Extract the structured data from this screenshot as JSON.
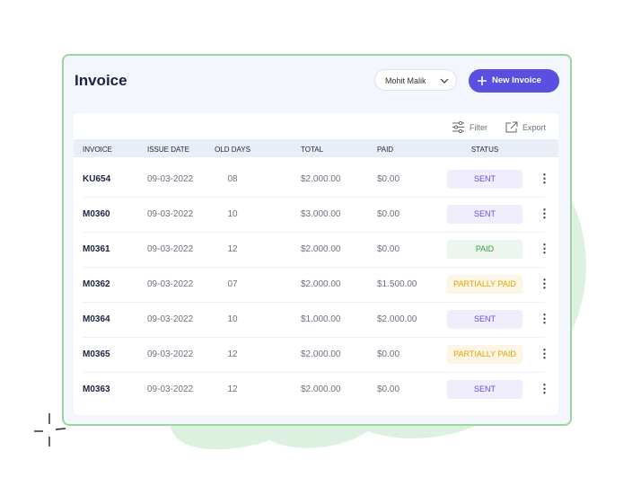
{
  "header": {
    "title": "Invoice",
    "user": "Mohit Malik",
    "new_button": "New Invoice"
  },
  "toolbar": {
    "filter": "Filter",
    "export": "Export"
  },
  "table": {
    "columns": [
      "INVOICE",
      "ISSUE DATE",
      "OLD DAYS",
      "TOTAL",
      "PAID",
      "STATUS"
    ],
    "rows": [
      {
        "invoice": "KU654",
        "issue_date": "09-03-2022",
        "old_days": "08",
        "total": "$2.000.00",
        "paid": "$0.00",
        "status": "SENT",
        "status_color": "#5b4fe0"
      },
      {
        "invoice": "M0360",
        "issue_date": "09-03-2022",
        "old_days": "10",
        "total": "$3.000.00",
        "paid": "$0.00",
        "status": "SENT",
        "status_color": "#5b4fe0"
      },
      {
        "invoice": "M0361",
        "issue_date": "09-03-2022",
        "old_days": "12",
        "total": "$2.000.00",
        "paid": "$0.00",
        "status": "PAID",
        "status_color": "#36a047"
      },
      {
        "invoice": "M0362",
        "issue_date": "09-03-2022",
        "old_days": "07",
        "total": "$2.000.00",
        "paid": "$1.500.00",
        "status": "PARTIALLY PAID",
        "status_color": "#e5a200"
      },
      {
        "invoice": "M0364",
        "issue_date": "09-03-2022",
        "old_days": "10",
        "total": "$1.000.00",
        "paid": "$2.000.00",
        "status": "SENT",
        "status_color": "#5b4fe0"
      },
      {
        "invoice": "M0365",
        "issue_date": "09-03-2022",
        "old_days": "12",
        "total": "$2.000.00",
        "paid": "$0.00",
        "status": "PARTIALLY PAID",
        "status_color": "#e5a200"
      },
      {
        "invoice": "M0363",
        "issue_date": "09-03-2022",
        "old_days": "12",
        "total": "$2.000.00",
        "paid": "$0.00",
        "status": "SENT",
        "status_color": "#5b4fe0"
      }
    ]
  }
}
